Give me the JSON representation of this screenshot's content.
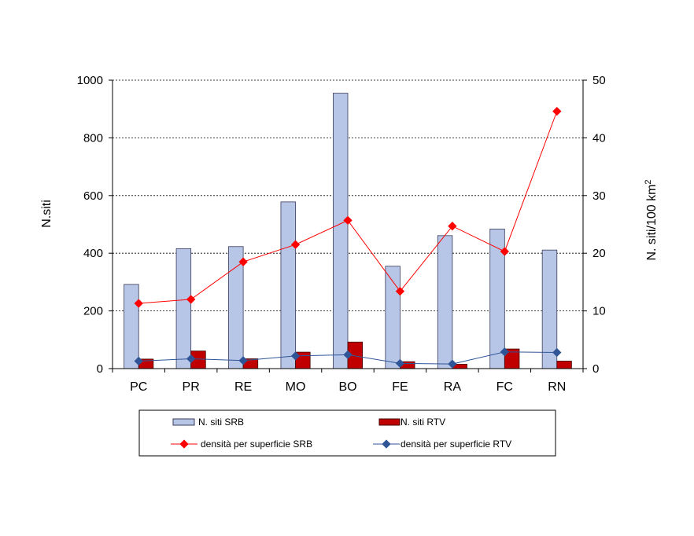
{
  "chart_data": {
    "type": "bar",
    "categories": [
      "PC",
      "PR",
      "RE",
      "MO",
      "BO",
      "FE",
      "RA",
      "FC",
      "RN"
    ],
    "series": [
      {
        "name": "N. siti SRB",
        "type": "bar",
        "axis": "left",
        "color": "#b7c6e7",
        "stroke": "#3a3a5a",
        "values": [
          292,
          416,
          423,
          578,
          955,
          355,
          461,
          484,
          411
        ]
      },
      {
        "name": "N. siti RTV",
        "type": "bar",
        "axis": "left",
        "color": "#c00000",
        "stroke": "#400000",
        "values": [
          33,
          61,
          34,
          57,
          92,
          24,
          15,
          68,
          26
        ]
      },
      {
        "name": "densità per superficie SRB",
        "type": "line",
        "axis": "right",
        "color": "#ff0000",
        "values": [
          11.3,
          12.0,
          18.5,
          21.5,
          25.7,
          13.4,
          24.7,
          20.3,
          44.6
        ]
      },
      {
        "name": "densità per superficie RTV",
        "type": "line",
        "axis": "right",
        "color": "#2f5597",
        "values": [
          1.3,
          1.7,
          1.4,
          2.2,
          2.4,
          0.9,
          0.8,
          2.9,
          2.8
        ]
      }
    ],
    "y_left": {
      "label": "N.siti",
      "min": 0,
      "max": 1000,
      "ticks": [
        "0",
        "200",
        "400",
        "600",
        "800",
        "1000"
      ]
    },
    "y_right": {
      "label": "N. siti/100 km",
      "label_sup": "2",
      "min": 0,
      "max": 50,
      "ticks": [
        "0",
        "10",
        "20",
        "30",
        "40",
        "50"
      ]
    },
    "grid": true,
    "legend_position": "bottom"
  }
}
